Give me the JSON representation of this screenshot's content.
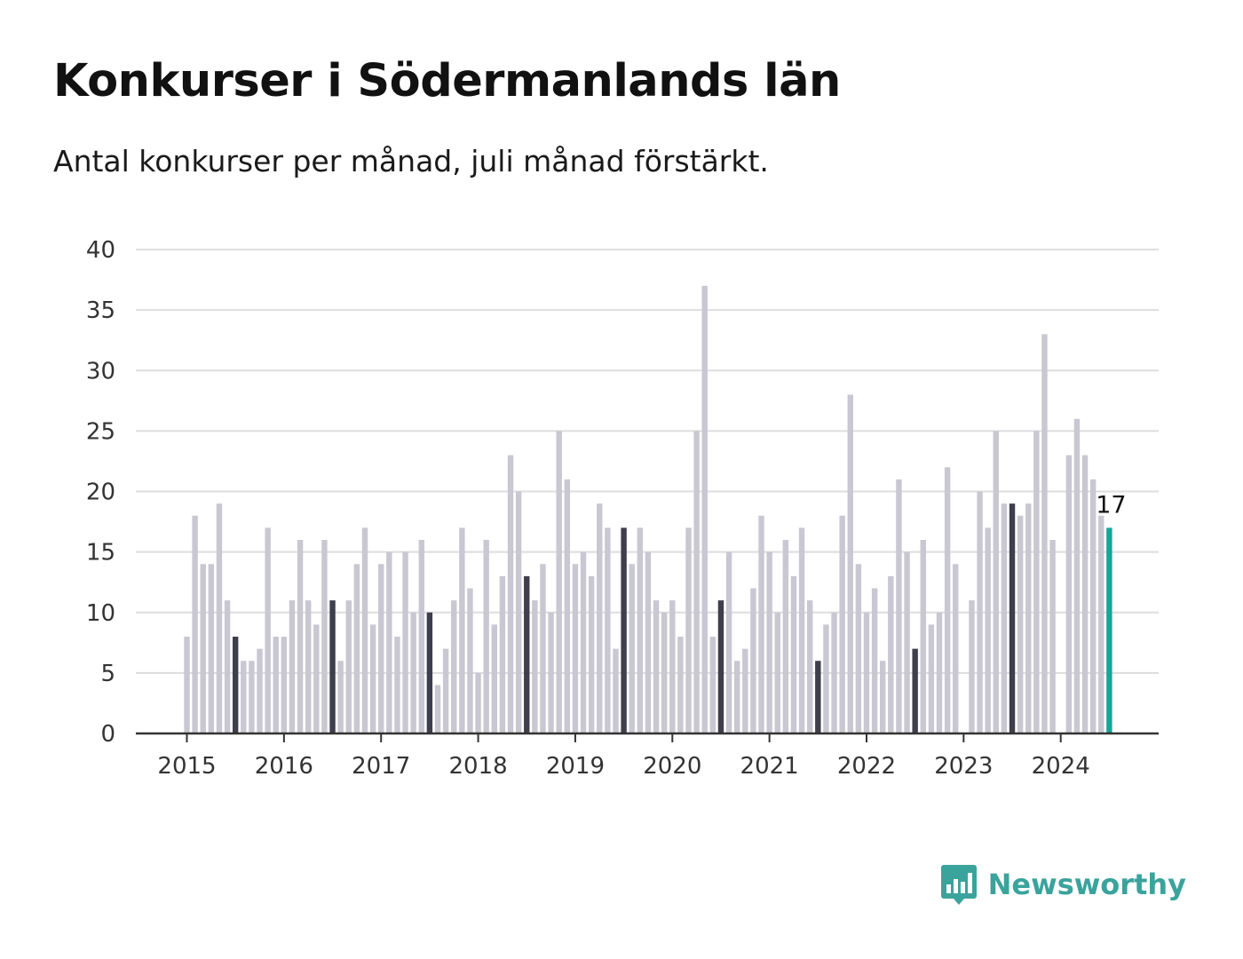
{
  "title": "Konkurser i Södermanlands län",
  "subtitle": "Antal konkurser per månad, juli månad förstärkt.",
  "brand": {
    "name": "Newsworthy",
    "color": "#3aa39c",
    "icon": "bar-chart-badge-icon"
  },
  "colors": {
    "bar": "#c8c7d2",
    "highlight": "#3f3e4c",
    "last": "#14a69b",
    "grid": "#dddddd",
    "axis": "#333333"
  },
  "chart_data": {
    "type": "bar",
    "title": "Konkurser i Södermanlands län",
    "subtitle": "Antal konkurser per månad, juli månad förstärkt.",
    "xlabel": "",
    "ylabel": "",
    "ylim": [
      0,
      40
    ],
    "yticks": [
      0,
      5,
      10,
      15,
      20,
      25,
      30,
      35,
      40
    ],
    "year_labels": [
      "2015",
      "2016",
      "2017",
      "2018",
      "2019",
      "2020",
      "2021",
      "2022",
      "2023",
      "2024"
    ],
    "start": "2015-01",
    "highlight_month": "juli",
    "grid": true,
    "legend": "none",
    "last_value_label": "17",
    "values": [
      8,
      18,
      14,
      14,
      19,
      11,
      8,
      6,
      6,
      7,
      17,
      8,
      8,
      11,
      16,
      11,
      9,
      16,
      11,
      6,
      11,
      14,
      17,
      9,
      14,
      15,
      8,
      15,
      10,
      16,
      10,
      4,
      7,
      11,
      17,
      12,
      5,
      16,
      9,
      13,
      23,
      20,
      13,
      11,
      14,
      10,
      25,
      21,
      14,
      15,
      13,
      19,
      17,
      7,
      17,
      14,
      17,
      15,
      11,
      10,
      11,
      8,
      17,
      25,
      37,
      8,
      11,
      15,
      6,
      7,
      12,
      18,
      15,
      10,
      16,
      13,
      17,
      11,
      6,
      9,
      10,
      18,
      28,
      14,
      10,
      12,
      6,
      13,
      21,
      15,
      7,
      16,
      9,
      10,
      22,
      14,
      null,
      11,
      20,
      17,
      25,
      19,
      19,
      18,
      19,
      25,
      33,
      16,
      null,
      23,
      26,
      23,
      21,
      18,
      17
    ]
  }
}
